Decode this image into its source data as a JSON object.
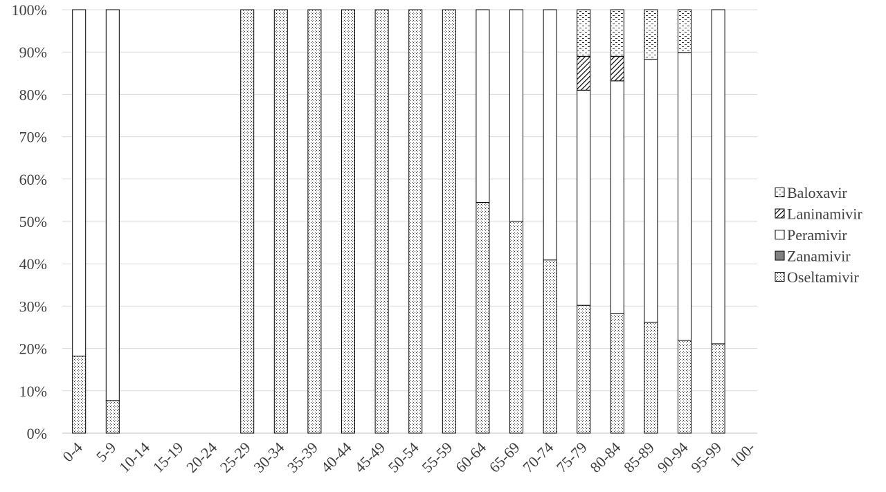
{
  "chart_data": {
    "type": "bar",
    "stacked": true,
    "normalized": true,
    "categories": [
      "0-4",
      "5-9",
      "10-14",
      "15-19",
      "20-24",
      "25-29",
      "30-34",
      "35-39",
      "40-44",
      "45-49",
      "50-54",
      "55-59",
      "60-64",
      "65-69",
      "70-74",
      "75-79",
      "80-84",
      "85-89",
      "90-94",
      "95-99",
      "100-"
    ],
    "series": [
      {
        "name": "Oseltamivir",
        "pattern": "dots",
        "values": [
          18.2,
          7.7,
          0,
          0,
          0,
          100,
          100,
          100,
          100,
          100,
          100,
          100,
          54.5,
          50,
          40.9,
          30.2,
          28.2,
          26.2,
          21.9,
          21.1,
          0
        ]
      },
      {
        "name": "Zanamivir",
        "pattern": "solid-gray",
        "values": [
          0,
          0,
          0,
          0,
          0,
          0,
          0,
          0,
          0,
          0,
          0,
          0,
          0,
          0,
          0,
          0,
          0,
          0,
          0,
          0,
          0
        ]
      },
      {
        "name": "Peramivir",
        "pattern": "white",
        "values": [
          81.8,
          92.3,
          0,
          0,
          0,
          0,
          0,
          0,
          0,
          0,
          0,
          0,
          45.5,
          50,
          59.1,
          50.8,
          55,
          62.1,
          68,
          78.9,
          0
        ]
      },
      {
        "name": "Laninamivir",
        "pattern": "hatch",
        "values": [
          0,
          0,
          0,
          0,
          0,
          0,
          0,
          0,
          0,
          0,
          0,
          0,
          0,
          0,
          0,
          8,
          5.8,
          0,
          0,
          0,
          0
        ]
      },
      {
        "name": "Baloxavir",
        "pattern": "dashes",
        "values": [
          0,
          0,
          0,
          0,
          0,
          0,
          0,
          0,
          0,
          0,
          0,
          0,
          0,
          0,
          0,
          11,
          11,
          11.7,
          10.1,
          0,
          0
        ]
      }
    ],
    "ylim": [
      0,
      100
    ],
    "yticks": [
      "0%",
      "10%",
      "20%",
      "30%",
      "40%",
      "50%",
      "60%",
      "70%",
      "80%",
      "90%",
      "100%"
    ],
    "grid": true,
    "legend_position": "right",
    "legend_order": [
      "Baloxavir",
      "Laninamivir",
      "Peramivir",
      "Zanamivir",
      "Oseltamivir"
    ],
    "colors": {
      "stroke": "#000000",
      "grid": "#d9d9d9",
      "text": "#404040",
      "zanamivir_fill": "#808080"
    }
  }
}
